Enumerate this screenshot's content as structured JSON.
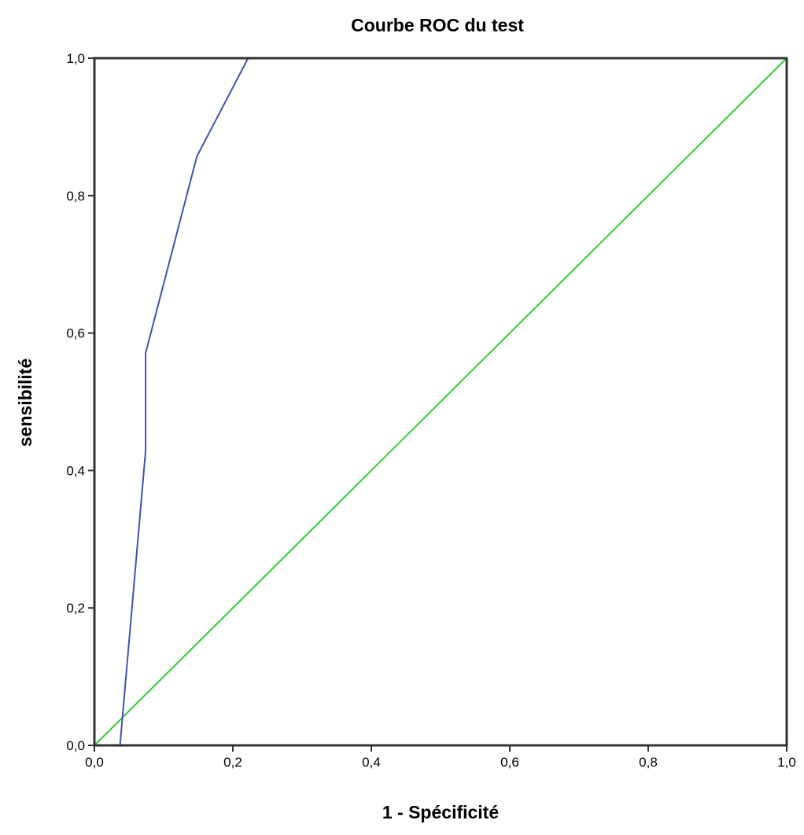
{
  "chart_data": {
    "type": "line",
    "title": "Courbe ROC du test",
    "xlabel": "1 - Spécificité",
    "ylabel": "sensibilité",
    "xlim": [
      0,
      1
    ],
    "ylim": [
      0,
      1
    ],
    "x_ticks": [
      "0,0",
      "0,2",
      "0,4",
      "0,6",
      "0,8",
      "1,0"
    ],
    "y_ticks": [
      "0,0",
      "0,2",
      "0,4",
      "0,6",
      "0,8",
      "1,0"
    ],
    "grid": false,
    "legend": "none",
    "series": [
      {
        "color": "#3f51b5",
        "points": [
          {
            "x": 0.0,
            "y": 0.0
          },
          {
            "x": 0.037,
            "y": 0.0
          },
          {
            "x": 0.074,
            "y": 0.429
          },
          {
            "x": 0.074,
            "y": 0.571
          },
          {
            "x": 0.148,
            "y": 0.857
          },
          {
            "x": 0.222,
            "y": 1.0
          },
          {
            "x": 1.0,
            "y": 1.0
          }
        ]
      },
      {
        "color": "#33cc33",
        "points": [
          {
            "x": 0.0,
            "y": 0.0
          },
          {
            "x": 1.0,
            "y": 1.0
          }
        ]
      }
    ]
  }
}
